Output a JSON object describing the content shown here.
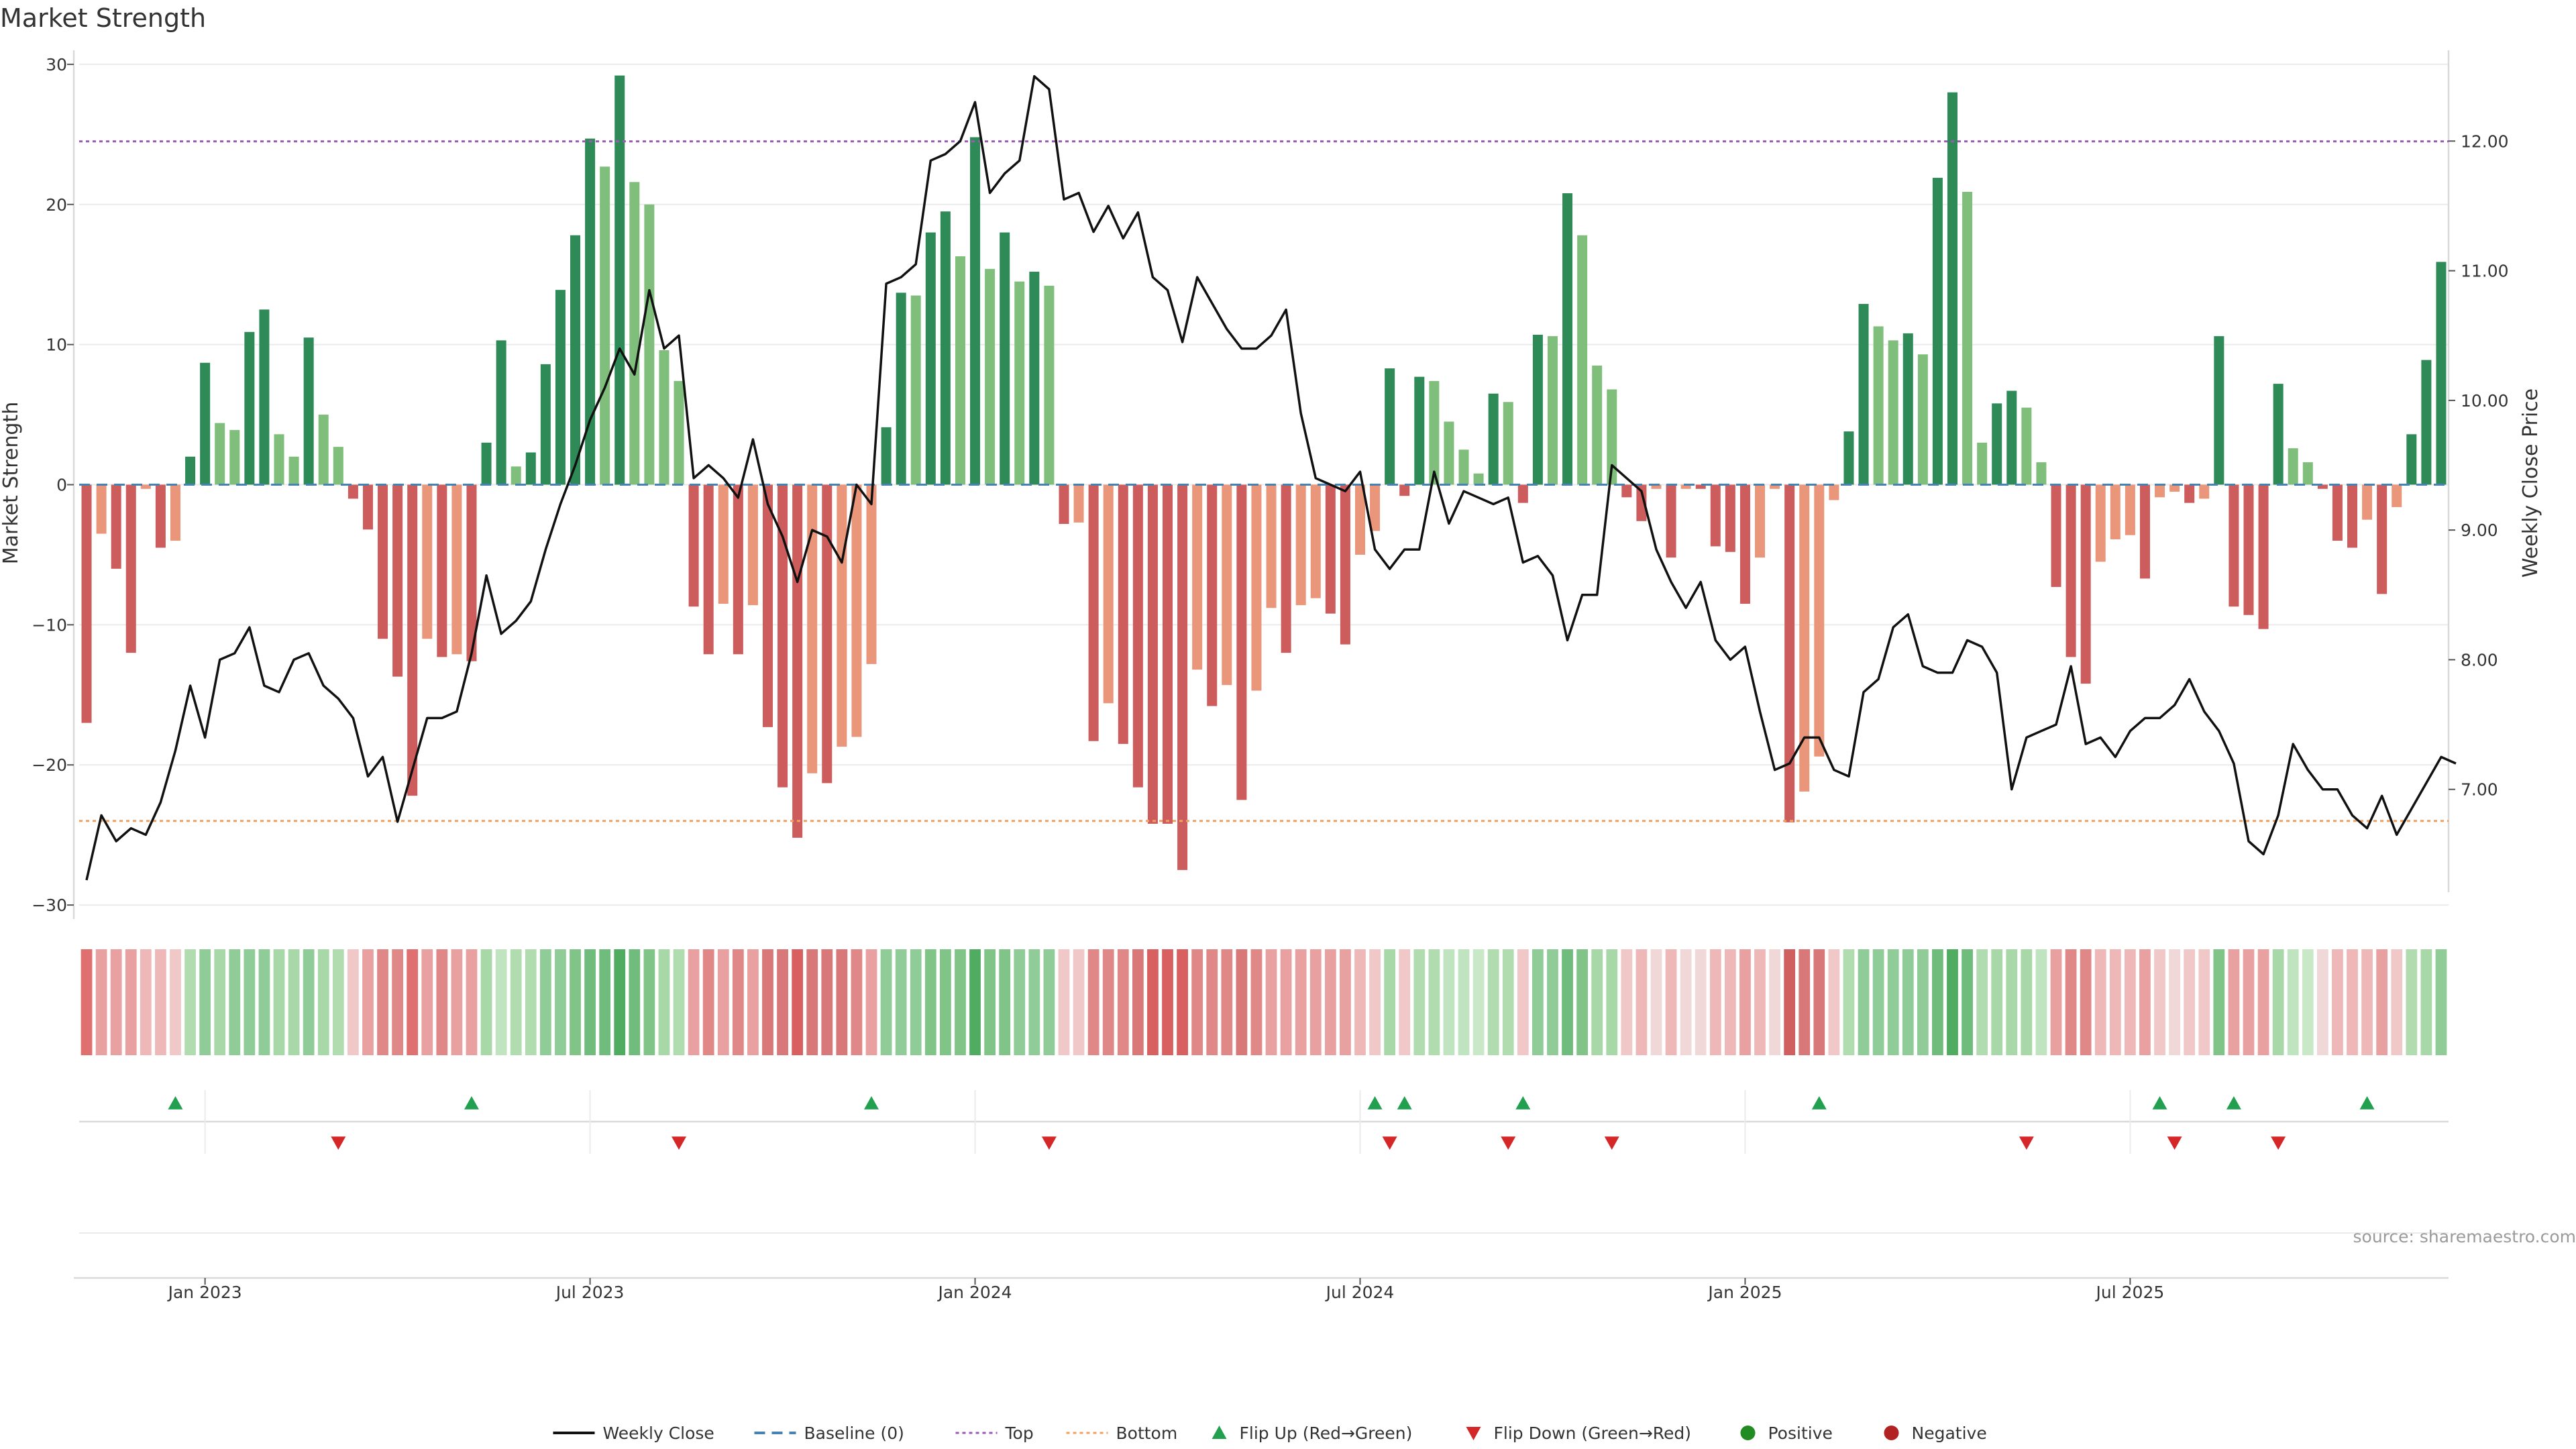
{
  "chart_data": {
    "type": "bar",
    "title": "Market Strength",
    "ylabel": "Market Strength",
    "y2label": "Weekly Close Price",
    "ylim": [
      -31,
      31
    ],
    "y2lim": [
      6.0,
      12.7
    ],
    "y_ticks": [
      30,
      20,
      10,
      0,
      -10,
      -20,
      -30
    ],
    "y_tick_labels": [
      "30",
      "20",
      "10",
      "0",
      "−10",
      "−20",
      "−30"
    ],
    "y2_ticks": [
      12.0,
      11.0,
      10.0,
      9.0,
      8.0,
      7.0
    ],
    "y2_tick_labels": [
      "12.00",
      "11.00",
      "10.00",
      "9.00",
      "8.00",
      "7.00"
    ],
    "x_ticks": [
      {
        "index": 8,
        "label": "Jan 2023"
      },
      {
        "index": 34,
        "label": "Jul 2023"
      },
      {
        "index": 60,
        "label": "Jan 2024"
      },
      {
        "index": 86,
        "label": "Jul 2024"
      },
      {
        "index": 112,
        "label": "Jan 2025"
      },
      {
        "index": 138,
        "label": "Jul 2025"
      }
    ],
    "top_threshold": 24.5,
    "bottom_threshold": -24,
    "baseline": 0,
    "colors": {
      "positive_strong": "#2e8b57",
      "positive_weak": "#7fbf7b",
      "negative_strong": "#cd5c5c",
      "negative_weak": "#e9967a",
      "price_line": "#111111",
      "baseline": "#4682b4",
      "top_line": "#9b59b6",
      "bottom_line": "#f0a060",
      "flip_up": "#22a050",
      "flip_down": "#d62728",
      "legend_positive": "#228b22",
      "legend_negative": "#b22222"
    },
    "strength": [
      -17,
      -3.5,
      -6,
      -12,
      -0.3,
      -4.5,
      -4,
      2,
      8.7,
      4.4,
      3.9,
      10.9,
      12.5,
      3.6,
      2,
      10.5,
      5,
      2.7,
      -1,
      -3.2,
      -11,
      -13.7,
      -22.2,
      -11,
      -12.3,
      -12.1,
      -12.6,
      3,
      10.3,
      1.3,
      2.3,
      8.6,
      13.9,
      17.8,
      24.7,
      22.7,
      29.2,
      21.6,
      20,
      9.6,
      7.4,
      -8.7,
      -12.1,
      -8.5,
      -12.1,
      -8.6,
      -17.3,
      -21.6,
      -25.2,
      -20.6,
      -21.3,
      -18.7,
      -18,
      -12.8,
      4.1,
      13.7,
      13.5,
      18,
      19.5,
      16.3,
      24.8,
      15.4,
      18,
      14.5,
      15.2,
      14.2,
      -2.8,
      -2.7,
      -18.3,
      -15.6,
      -18.5,
      -21.6,
      -24.2,
      -24.2,
      -27.5,
      -13.2,
      -15.8,
      -14.3,
      -22.5,
      -14.7,
      -8.8,
      -12,
      -8.6,
      -8.1,
      -9.2,
      -11.4,
      -5,
      -3.3,
      8.3,
      -0.8,
      7.7,
      7.4,
      4.5,
      2.5,
      0.8,
      6.5,
      5.9,
      -1.3,
      10.7,
      10.6,
      20.8,
      17.8,
      8.5,
      6.8,
      -0.9,
      -2.6,
      -0.3,
      -5.2,
      -0.3,
      -0.3,
      -4.4,
      -4.8,
      -8.5,
      -5.2,
      -0.3,
      -24.1,
      -21.9,
      -19.4,
      -1.1,
      3.8,
      12.9,
      11.3,
      10.3,
      10.8,
      9.3,
      21.9,
      28,
      20.9,
      3,
      5.8,
      6.7,
      5.5,
      1.6,
      -7.3,
      -12.3,
      -14.2,
      -5.5,
      -3.9,
      -3.6,
      -6.7,
      -0.9,
      -0.5,
      -1.3,
      -1,
      10.6,
      -8.7,
      -9.3,
      -10.3,
      7.2,
      2.6,
      1.6,
      -0.3,
      -4,
      -4.5,
      -2.5,
      -7.8,
      -1.6,
      3.6,
      8.9,
      15.9
    ],
    "strength_shades": [
      "#e07070",
      "#e8a0a0",
      "#e8a0a0",
      "#e8a0a0",
      "#eeb8b8",
      "#eeb8b8",
      "#f0c8c8",
      "#b0dcb0",
      "#90cc98",
      "#a8d8a8",
      "#90cc98",
      "#90cc98",
      "#90cc98",
      "#a8d8a8",
      "#a8d8a8",
      "#90cc98",
      "#a8d8a8",
      "#b0dcb0",
      "#f0c8c8",
      "#e8a0a0",
      "#e08888",
      "#e08888",
      "#e07070",
      "#e8a0a0",
      "#e08888",
      "#e8a0a0",
      "#e8a0a0",
      "#a8d8a8",
      "#c0e4c0",
      "#b0dcb0",
      "#b0dcb0",
      "#90cc98",
      "#90cc98",
      "#80c488",
      "#70bc7c",
      "#70bc7c",
      "#50ac60",
      "#70bc7c",
      "#80c488",
      "#a8d8a8",
      "#b0dcb0",
      "#e8a0a0",
      "#e08888",
      "#e8a0a0",
      "#e08888",
      "#e8a0a0",
      "#d87878",
      "#d87878",
      "#d86060",
      "#d87878",
      "#d87878",
      "#d87878",
      "#e08888",
      "#e8a0a0",
      "#90cc98",
      "#90cc98",
      "#90cc98",
      "#80c488",
      "#80c488",
      "#80c488",
      "#50ac60",
      "#80c488",
      "#80c488",
      "#90cc98",
      "#90cc98",
      "#90cc98",
      "#f0c8c8",
      "#f0c8c8",
      "#e08888",
      "#e08888",
      "#e08888",
      "#d87878",
      "#d86060",
      "#d86060",
      "#d86060",
      "#e08888",
      "#e08888",
      "#e08888",
      "#d87878",
      "#e08888",
      "#e8a0a0",
      "#e8a0a0",
      "#e8a0a0",
      "#e8a0a0",
      "#e8a0a0",
      "#e8a0a0",
      "#eeb8b8",
      "#f0c8c8",
      "#a8d8a8",
      "#f0c8c8",
      "#b0dcb0",
      "#b0dcb0",
      "#c0e4c0",
      "#c0e4c0",
      "#c8e8c8",
      "#b0dcb0",
      "#b0dcb0",
      "#f0c8c8",
      "#90cc98",
      "#90cc98",
      "#70bc7c",
      "#80c488",
      "#a8d8a8",
      "#a8d8a8",
      "#f0c8c8",
      "#eeb8b8",
      "#f0d8d8",
      "#eeb8b8",
      "#f0d8d8",
      "#f0d8d8",
      "#eeb8b8",
      "#eeb8b8",
      "#e8a0a0",
      "#eeb8b8",
      "#f0d8d8",
      "#d06060",
      "#d87878",
      "#d87878",
      "#f0c8c8",
      "#b0dcb0",
      "#90cc98",
      "#90cc98",
      "#90cc98",
      "#90cc98",
      "#90cc98",
      "#70bc7c",
      "#50ac60",
      "#70bc7c",
      "#b0dcb0",
      "#a8d8a8",
      "#a8d8a8",
      "#a8d8a8",
      "#c0e4c0",
      "#e8a0a0",
      "#e08888",
      "#e08888",
      "#eeb8b8",
      "#eeb8b8",
      "#eeb8b8",
      "#e8a0a0",
      "#f0c8c8",
      "#f0d8d8",
      "#f0c8c8",
      "#f0c8c8",
      "#80c488",
      "#e8a0a0",
      "#e8a0a0",
      "#e8a0a0",
      "#a8d8a8",
      "#c0e4c0",
      "#c8e8c8",
      "#f0d8d8",
      "#eeb8b8",
      "#eeb8b8",
      "#eeb8b8",
      "#e8a0a0",
      "#f0c8c8",
      "#b0dcb0",
      "#a8d8a8",
      "#90cc98"
    ],
    "price": [
      6.3,
      6.8,
      6.6,
      6.7,
      6.65,
      6.9,
      7.3,
      7.8,
      7.4,
      8.0,
      8.05,
      8.25,
      7.8,
      7.75,
      8.0,
      8.05,
      7.8,
      7.7,
      7.55,
      7.1,
      7.25,
      6.75,
      7.15,
      7.55,
      7.55,
      7.6,
      8.05,
      8.65,
      8.2,
      8.3,
      8.45,
      8.85,
      9.2,
      9.5,
      9.85,
      10.1,
      10.4,
      10.2,
      10.85,
      10.4,
      10.5,
      9.4,
      9.5,
      9.4,
      9.25,
      9.7,
      9.2,
      8.95,
      8.6,
      9.0,
      8.95,
      8.75,
      9.35,
      9.2,
      10.9,
      10.95,
      11.05,
      11.85,
      11.9,
      12.0,
      12.3,
      11.6,
      11.75,
      11.85,
      12.5,
      12.4,
      11.55,
      11.6,
      11.3,
      11.5,
      11.25,
      11.45,
      10.95,
      10.85,
      10.45,
      10.95,
      10.75,
      10.55,
      10.4,
      10.4,
      10.5,
      10.7,
      9.9,
      9.4,
      9.35,
      9.3,
      9.45,
      8.85,
      8.7,
      8.85,
      8.85,
      9.45,
      9.05,
      9.3,
      9.25,
      9.2,
      9.25,
      8.75,
      8.8,
      8.65,
      8.15,
      8.5,
      8.5,
      9.5,
      9.4,
      9.3,
      8.85,
      8.6,
      8.4,
      8.6,
      8.15,
      8.0,
      8.1,
      7.6,
      7.15,
      7.2,
      7.4,
      7.4,
      7.15,
      7.1,
      7.75,
      7.85,
      8.25,
      8.35,
      7.95,
      7.9,
      7.9,
      8.15,
      8.1,
      7.9,
      7.0,
      7.4,
      7.45,
      7.5,
      7.95,
      7.35,
      7.4,
      7.25,
      7.45,
      7.55,
      7.55,
      7.65,
      7.85,
      7.6,
      7.45,
      7.2,
      6.6,
      6.5,
      6.8,
      7.35,
      7.15,
      7.0,
      7.0,
      6.8,
      6.7,
      6.95,
      6.65,
      6.85,
      7.05,
      7.25,
      7.2
    ],
    "flips_up": [
      6,
      26,
      53,
      87,
      89,
      97,
      117,
      140,
      145,
      154
    ],
    "flips_down": [
      17,
      40,
      65,
      88,
      96,
      103,
      131,
      141,
      148
    ],
    "legend": [
      {
        "label": "Weekly Close",
        "symbol": "line"
      },
      {
        "label": "Baseline (0)",
        "symbol": "dash"
      },
      {
        "label": "Top",
        "symbol": "dot"
      },
      {
        "label": "Bottom",
        "symbol": "dot-orange"
      },
      {
        "label": "Flip Up (Red→Green)",
        "symbol": "triangle-up"
      },
      {
        "label": "Flip Down (Green→Red)",
        "symbol": "triangle-down"
      },
      {
        "label": "Positive",
        "symbol": "circle-green"
      },
      {
        "label": "Negative",
        "symbol": "circle-red"
      }
    ],
    "source": "source: sharemaestro.com"
  }
}
